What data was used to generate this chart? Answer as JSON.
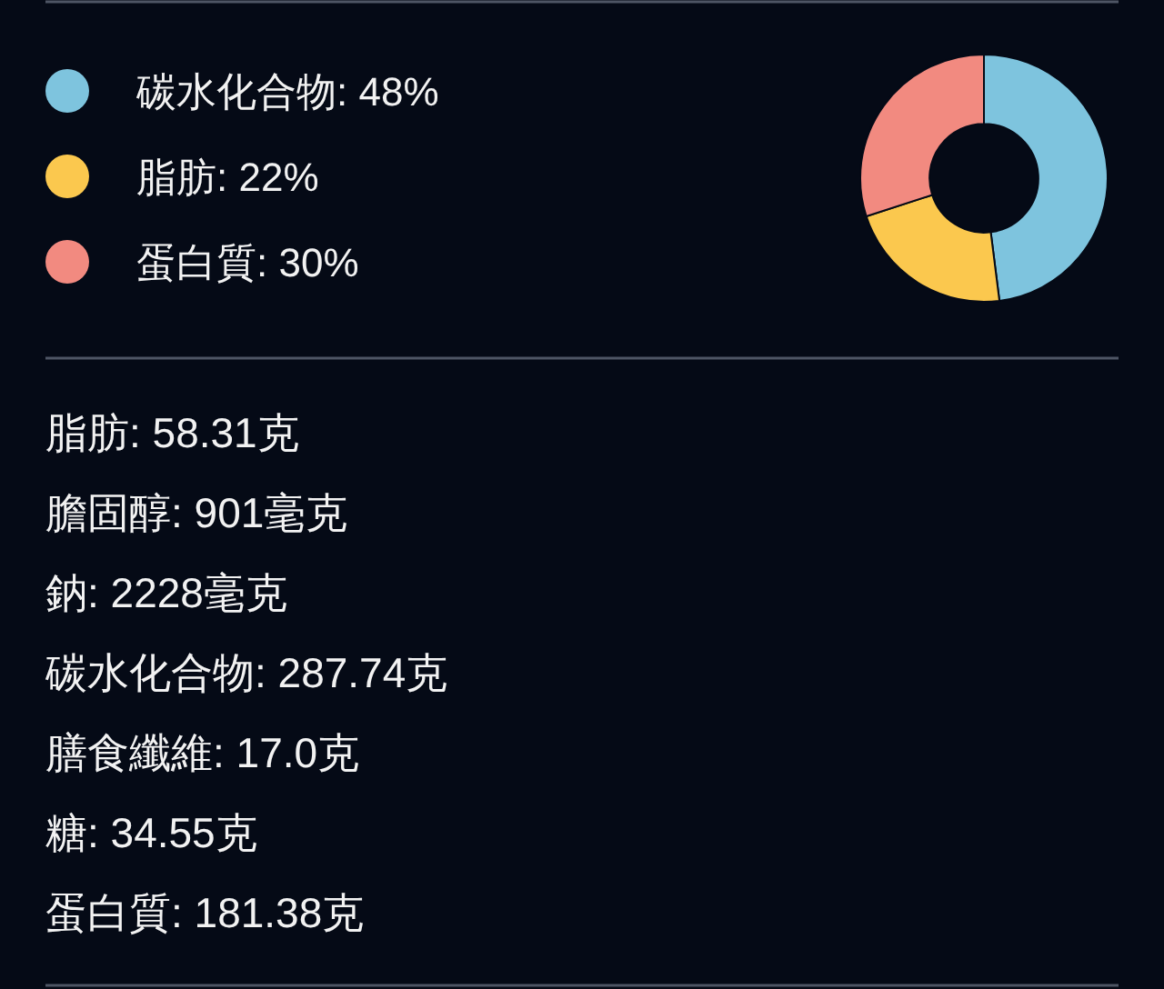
{
  "chart_data": {
    "type": "donut",
    "categories": [
      "碳水化合物",
      "脂肪",
      "蛋白質"
    ],
    "values": [
      48,
      22,
      30
    ],
    "value_labels": [
      "48%",
      "22%",
      "30%"
    ],
    "colors": [
      "#7ec4de",
      "#fbc84e",
      "#f28a80"
    ],
    "legend": "left",
    "annotations": [
      "脂肪: 58.31克",
      "膽固醇: 901毫克",
      "鈉: 2228毫克",
      "碳水化合物: 287.74克",
      "膳食纖維: 17.0克",
      "糖: 34.55克",
      "蛋白質: 181.38克"
    ]
  }
}
